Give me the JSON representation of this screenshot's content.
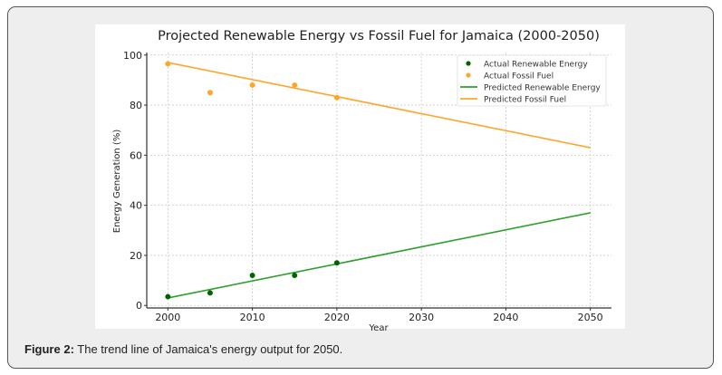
{
  "caption": {
    "label": "Figure 2:",
    "text": " The trend line of Jamaica's energy output for 2050."
  },
  "chart_data": {
    "type": "scatter",
    "title": "Projected Renewable Energy vs Fossil Fuel for Jamaica (2000-2050)",
    "xlabel": "Year",
    "ylabel": "Energy Generation (%)",
    "xlim": [
      1997.5,
      2052.5
    ],
    "ylim": [
      -1,
      101
    ],
    "xticks": [
      2000,
      2010,
      2020,
      2030,
      2040,
      2050
    ],
    "yticks": [
      0,
      20,
      40,
      60,
      80,
      100
    ],
    "grid": true,
    "legend_position": "top-right",
    "series": [
      {
        "name": "Actual Renewable Energy",
        "kind": "scatter",
        "color": "#006400",
        "x": [
          2000,
          2005,
          2010,
          2015,
          2020
        ],
        "y": [
          3.5,
          5,
          12,
          12,
          17
        ]
      },
      {
        "name": "Actual Fossil Fuel",
        "kind": "scatter",
        "color": "#ffa629",
        "x": [
          2000,
          2005,
          2010,
          2015,
          2020
        ],
        "y": [
          96.5,
          85,
          88,
          88,
          83
        ]
      },
      {
        "name": "Predicted Renewable Energy",
        "kind": "line",
        "color": "#2ca02c",
        "x": [
          2000,
          2050
        ],
        "y": [
          3,
          37
        ]
      },
      {
        "name": "Predicted Fossil Fuel",
        "kind": "line",
        "color": "#ffa629",
        "x": [
          2000,
          2050
        ],
        "y": [
          97,
          63
        ]
      }
    ]
  }
}
